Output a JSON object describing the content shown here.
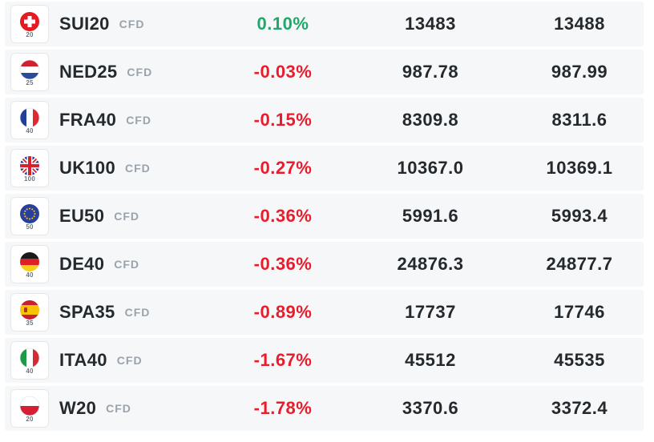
{
  "colors": {
    "positive": "#20a86a",
    "negative": "#e81c2c",
    "row_background": "#f6f7f8",
    "text": "#24292e",
    "muted": "#9aa3ab"
  },
  "instruments": [
    {
      "symbol": "SUI20",
      "tag": "CFD",
      "flag_icon": "switzerland-flag-icon",
      "flag_number": "20",
      "change": "0.10%",
      "direction": "up",
      "sell": "13483",
      "buy": "13488"
    },
    {
      "symbol": "NED25",
      "tag": "CFD",
      "flag_icon": "netherlands-flag-icon",
      "flag_number": "25",
      "change": "-0.03%",
      "direction": "down",
      "sell": "987.78",
      "buy": "987.99"
    },
    {
      "symbol": "FRA40",
      "tag": "CFD",
      "flag_icon": "france-flag-icon",
      "flag_number": "40",
      "change": "-0.15%",
      "direction": "down",
      "sell": "8309.8",
      "buy": "8311.6"
    },
    {
      "symbol": "UK100",
      "tag": "CFD",
      "flag_icon": "uk-flag-icon",
      "flag_number": "100",
      "change": "-0.27%",
      "direction": "down",
      "sell": "10367.0",
      "buy": "10369.1"
    },
    {
      "symbol": "EU50",
      "tag": "CFD",
      "flag_icon": "eu-flag-icon",
      "flag_number": "50",
      "change": "-0.36%",
      "direction": "down",
      "sell": "5991.6",
      "buy": "5993.4"
    },
    {
      "symbol": "DE40",
      "tag": "CFD",
      "flag_icon": "germany-flag-icon",
      "flag_number": "40",
      "change": "-0.36%",
      "direction": "down",
      "sell": "24876.3",
      "buy": "24877.7"
    },
    {
      "symbol": "SPA35",
      "tag": "CFD",
      "flag_icon": "spain-flag-icon",
      "flag_number": "35",
      "change": "-0.89%",
      "direction": "down",
      "sell": "17737",
      "buy": "17746"
    },
    {
      "symbol": "ITA40",
      "tag": "CFD",
      "flag_icon": "italy-flag-icon",
      "flag_number": "40",
      "change": "-1.67%",
      "direction": "down",
      "sell": "45512",
      "buy": "45535"
    },
    {
      "symbol": "W20",
      "tag": "CFD",
      "flag_icon": "poland-flag-icon",
      "flag_number": "20",
      "change": "-1.78%",
      "direction": "down",
      "sell": "3370.6",
      "buy": "3372.4"
    }
  ]
}
